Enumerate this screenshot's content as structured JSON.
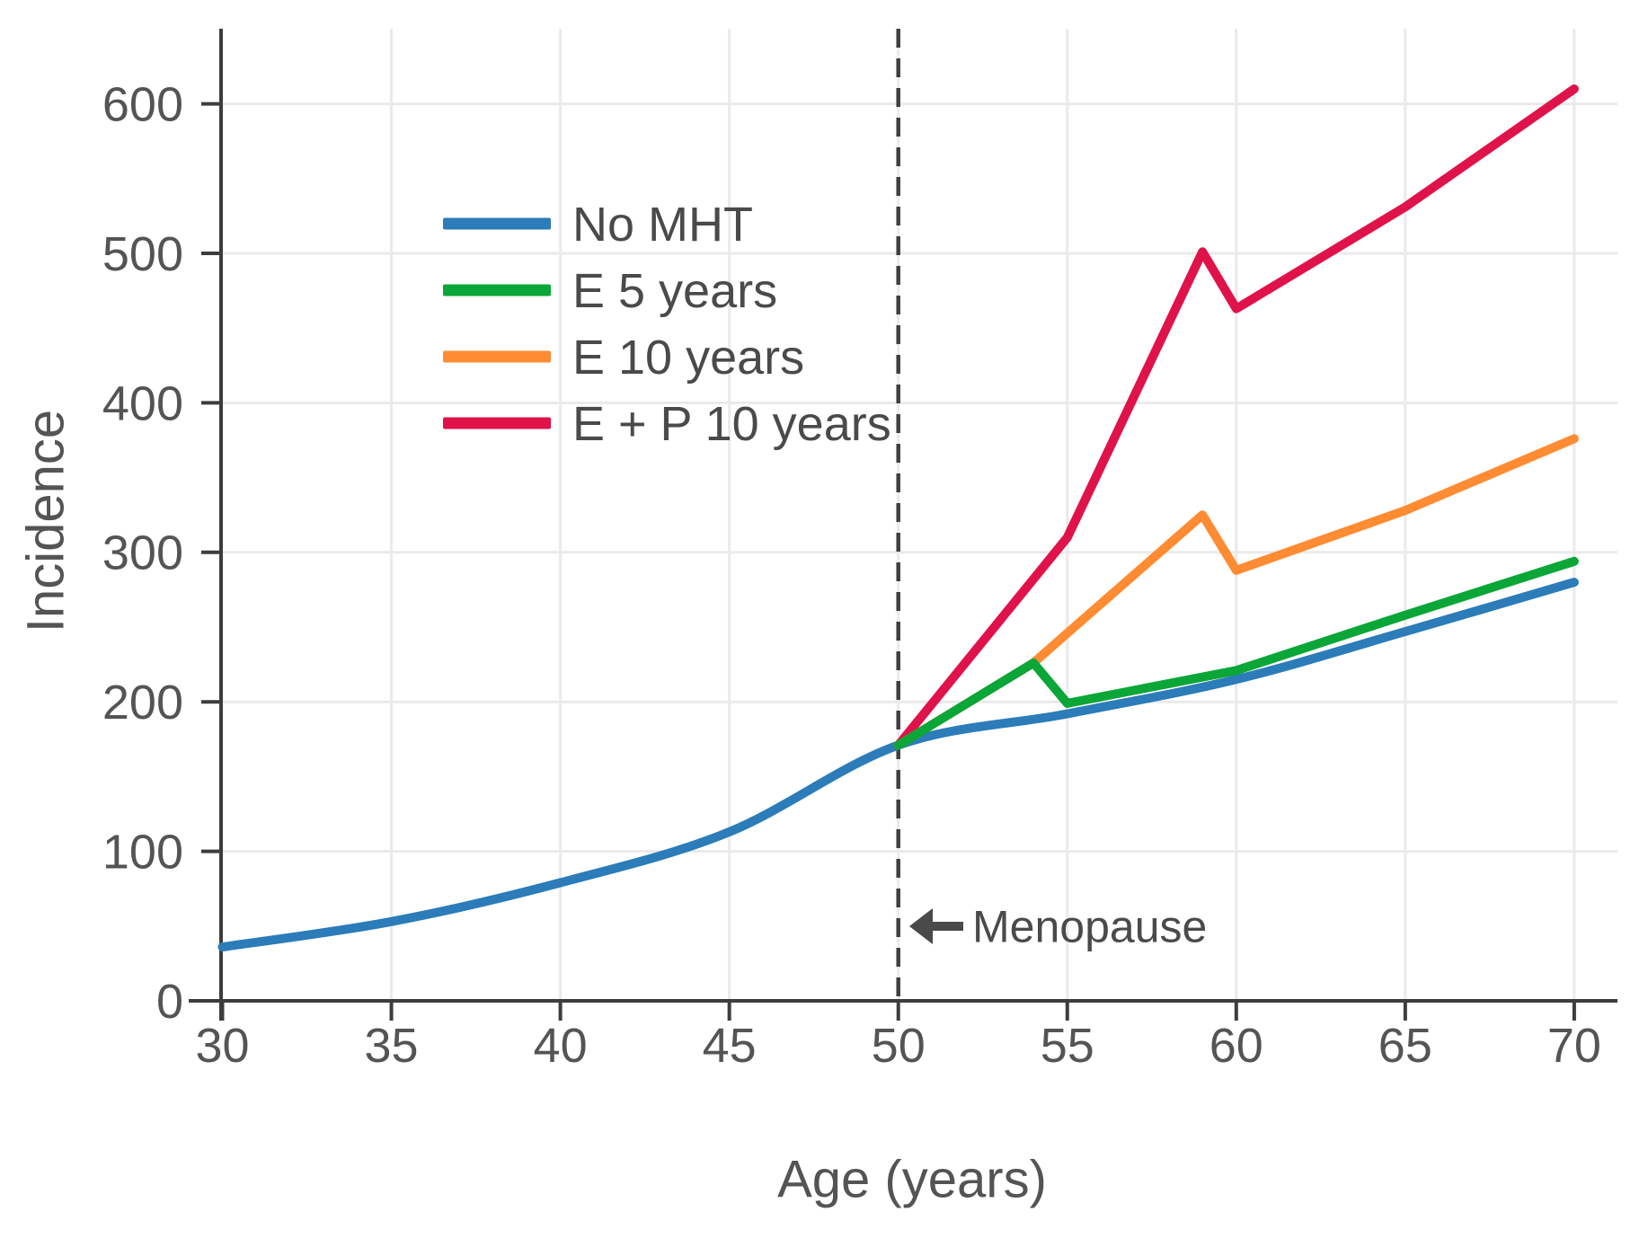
{
  "figure": {
    "background": "#ffffff"
  },
  "chart_data": {
    "type": "line",
    "title": "",
    "xlabel": "Age (years)",
    "ylabel": "Incidence",
    "x_ticks": [
      30,
      35,
      40,
      45,
      50,
      55,
      60,
      65,
      70
    ],
    "y_ticks": [
      0,
      100,
      200,
      300,
      400,
      500,
      600
    ],
    "xlim": [
      30,
      71.3
    ],
    "ylim": [
      0,
      650
    ],
    "grid": true,
    "legend_position": "upper-left-inside",
    "series": [
      {
        "name": "No MHT",
        "color": "#2b7cb8",
        "smooth": true,
        "x": [
          30,
          35,
          40,
          45,
          50,
          55,
          60,
          65,
          70
        ],
        "y": [
          36,
          53,
          79,
          113,
          171,
          192,
          215,
          247,
          280
        ]
      },
      {
        "name": "E 5 years",
        "color": "#0aa637",
        "smooth": false,
        "x": [
          50,
          54,
          55,
          60,
          65,
          70
        ],
        "y": [
          171,
          226,
          199,
          221,
          258,
          294
        ]
      },
      {
        "name": "E 10 years",
        "color": "#ff8b33",
        "smooth": false,
        "x": [
          50,
          54,
          55,
          59,
          60,
          65,
          70
        ],
        "y": [
          171,
          226,
          246,
          325,
          288,
          328,
          376
        ]
      },
      {
        "name": "E + P 10 years",
        "color": "#e0124a",
        "smooth": false,
        "x": [
          50,
          55,
          59,
          60,
          65,
          70
        ],
        "y": [
          171,
          310,
          501,
          463,
          531,
          610
        ]
      }
    ],
    "vline": {
      "x": 50,
      "style": "dashed",
      "color": "#3f3f3f"
    },
    "annotations": [
      {
        "text": "Menopause",
        "x": 50,
        "arrow": "left"
      }
    ],
    "style": {
      "axis_color": "#3d3d3d",
      "tick_label_color": "#545454",
      "grid_color": "#eaeaea",
      "annotation_color": "#4a4a4a",
      "legend_text_color": "#4a4a4a"
    }
  }
}
